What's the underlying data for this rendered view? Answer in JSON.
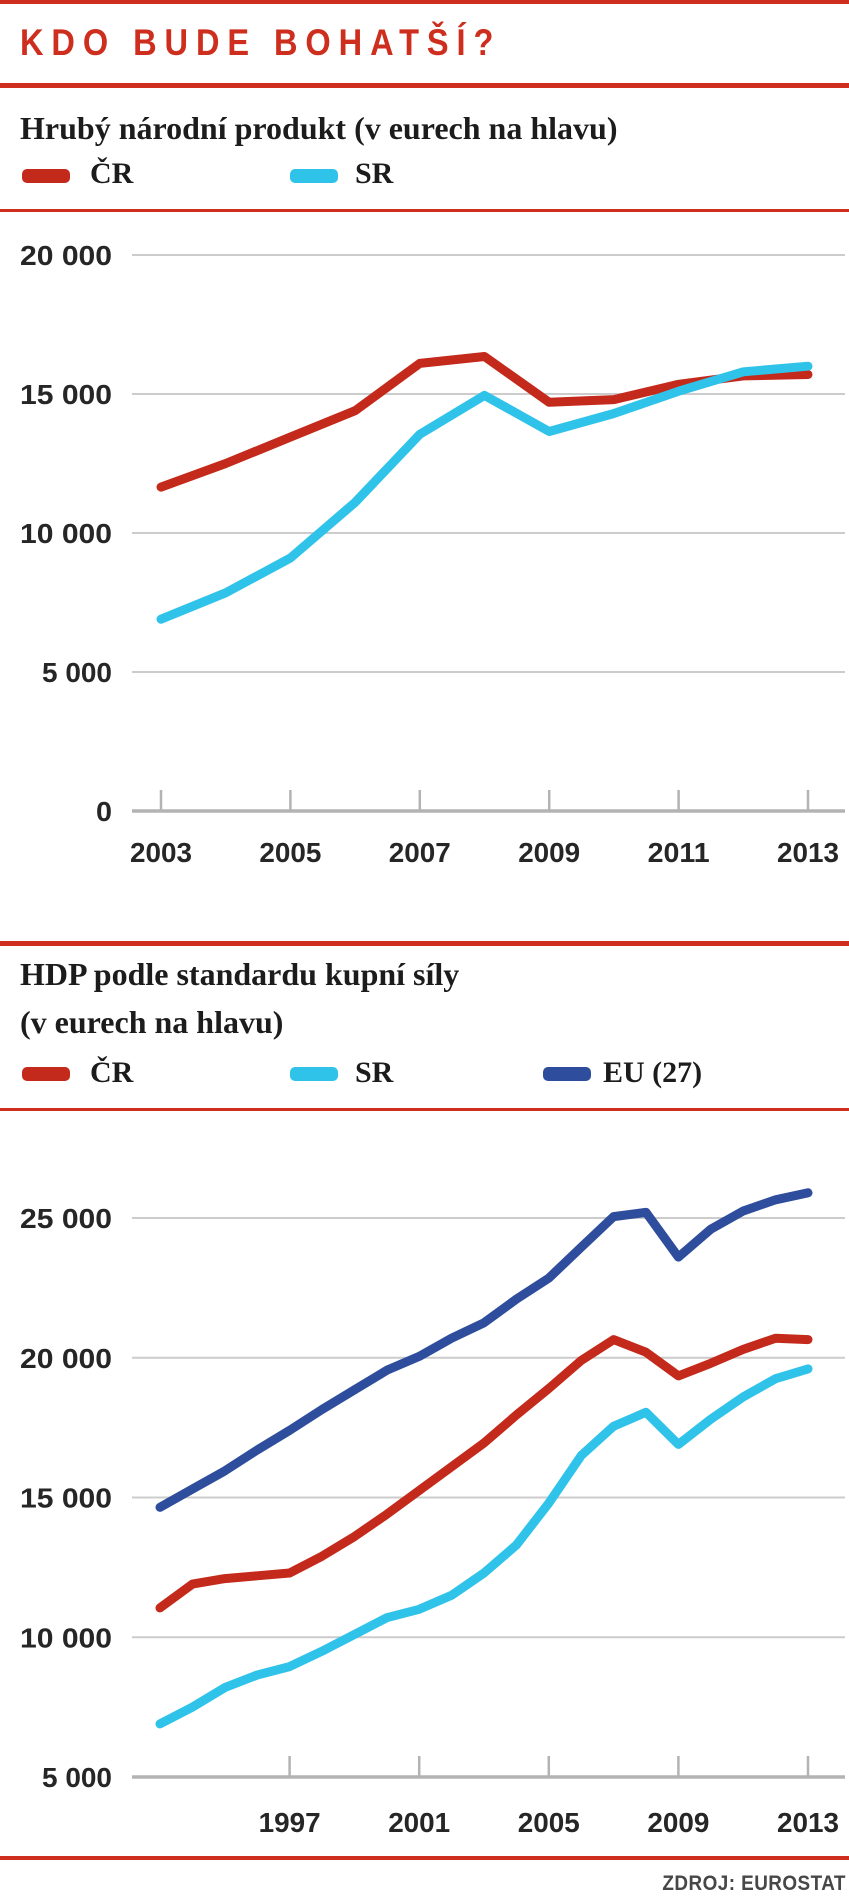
{
  "page": {
    "header_title": "KDO BUDE BOHATŠÍ?",
    "source_label": "ZDROJ: EUROSTAT"
  },
  "colors": {
    "accent_red": "#cd2e1d",
    "line_red": "#c42a1b",
    "line_cyan": "#30c3ea",
    "line_navy": "#2e4d9c",
    "grid": "#cccccc",
    "axis": "#b3b3b3",
    "tick_label": "#262626",
    "source_text": "#474747"
  },
  "chart_data": [
    {
      "id": "gnp",
      "type": "line",
      "title": "Hrubý národní produkt (v eurech na hlavu)",
      "xlabel": "",
      "ylabel": "",
      "grid": true,
      "legend_position": "top",
      "ylim": [
        0,
        21100
      ],
      "x": [
        2003,
        2004,
        2005,
        2006,
        2007,
        2008,
        2009,
        2010,
        2011,
        2012,
        2013
      ],
      "xticks": [
        {
          "value": 2003,
          "label": "2003"
        },
        {
          "value": 2005,
          "label": "2005"
        },
        {
          "value": 2007,
          "label": "2007"
        },
        {
          "value": 2009,
          "label": "2009"
        },
        {
          "value": 2011,
          "label": "2011"
        },
        {
          "value": 2013,
          "label": "2013"
        }
      ],
      "yticks": [
        {
          "value": 20000,
          "label": "20 000"
        },
        {
          "value": 15000,
          "label": "15 000"
        },
        {
          "value": 10000,
          "label": "10 000"
        },
        {
          "value": 5000,
          "label": "5 000"
        },
        {
          "value": 0,
          "label": "0"
        }
      ],
      "series": [
        {
          "name": "ČR",
          "color": "#c42a1b",
          "values": [
            11650,
            12500,
            13450,
            14400,
            16100,
            16350,
            14700,
            14800,
            15350,
            15650,
            15700
          ]
        },
        {
          "name": "SR",
          "color": "#30c3ea",
          "values": [
            6900,
            7850,
            9100,
            11100,
            13550,
            14950,
            13650,
            14300,
            15100,
            15800,
            16000
          ]
        }
      ]
    },
    {
      "id": "gdp_pps",
      "type": "line",
      "title": "HDP podle standardu kupní síly (v eurech na hlavu)",
      "title_lines": [
        "HDP podle standardu kupní síly",
        "(v eurech na hlavu)"
      ],
      "xlabel": "",
      "ylabel": "",
      "grid": true,
      "legend_position": "top",
      "ylim": [
        5000,
        27400
      ],
      "x": [
        1993,
        1994,
        1995,
        1996,
        1997,
        1998,
        1999,
        2000,
        2001,
        2002,
        2003,
        2004,
        2005,
        2006,
        2007,
        2008,
        2009,
        2010,
        2011,
        2012,
        2013
      ],
      "xticks": [
        {
          "value": 1997,
          "label": "1997"
        },
        {
          "value": 2001,
          "label": "2001"
        },
        {
          "value": 2005,
          "label": "2005"
        },
        {
          "value": 2009,
          "label": "2009"
        },
        {
          "value": 2013,
          "label": "2013"
        }
      ],
      "yticks": [
        {
          "value": 25000,
          "label": "25 000"
        },
        {
          "value": 20000,
          "label": "20 000"
        },
        {
          "value": 15000,
          "label": "15 000"
        },
        {
          "value": 10000,
          "label": "10 000"
        },
        {
          "value": 5000,
          "label": "5 000"
        }
      ],
      "series": [
        {
          "name": "ČR",
          "color": "#c42a1b",
          "values": [
            11050,
            11900,
            12100,
            12200,
            12300,
            12900,
            13600,
            14400,
            15250,
            16100,
            16950,
            17950,
            18900,
            19900,
            20650,
            20200,
            19350,
            19800,
            20300,
            20700,
            20650
          ]
        },
        {
          "name": "SR",
          "color": "#30c3ea",
          "values": [
            6900,
            7500,
            8200,
            8650,
            8950,
            9500,
            10100,
            10700,
            11000,
            11500,
            12300,
            13300,
            14800,
            16500,
            17550,
            18050,
            16900,
            17800,
            18600,
            19250,
            19600
          ]
        },
        {
          "name": "EU (27)",
          "color": "#2e4d9c",
          "values": [
            14650,
            15300,
            15950,
            16700,
            17400,
            18150,
            18850,
            19550,
            20050,
            20700,
            21250,
            22100,
            22850,
            23950,
            25050,
            25200,
            23600,
            24600,
            25250,
            25650,
            25900
          ]
        }
      ]
    }
  ]
}
